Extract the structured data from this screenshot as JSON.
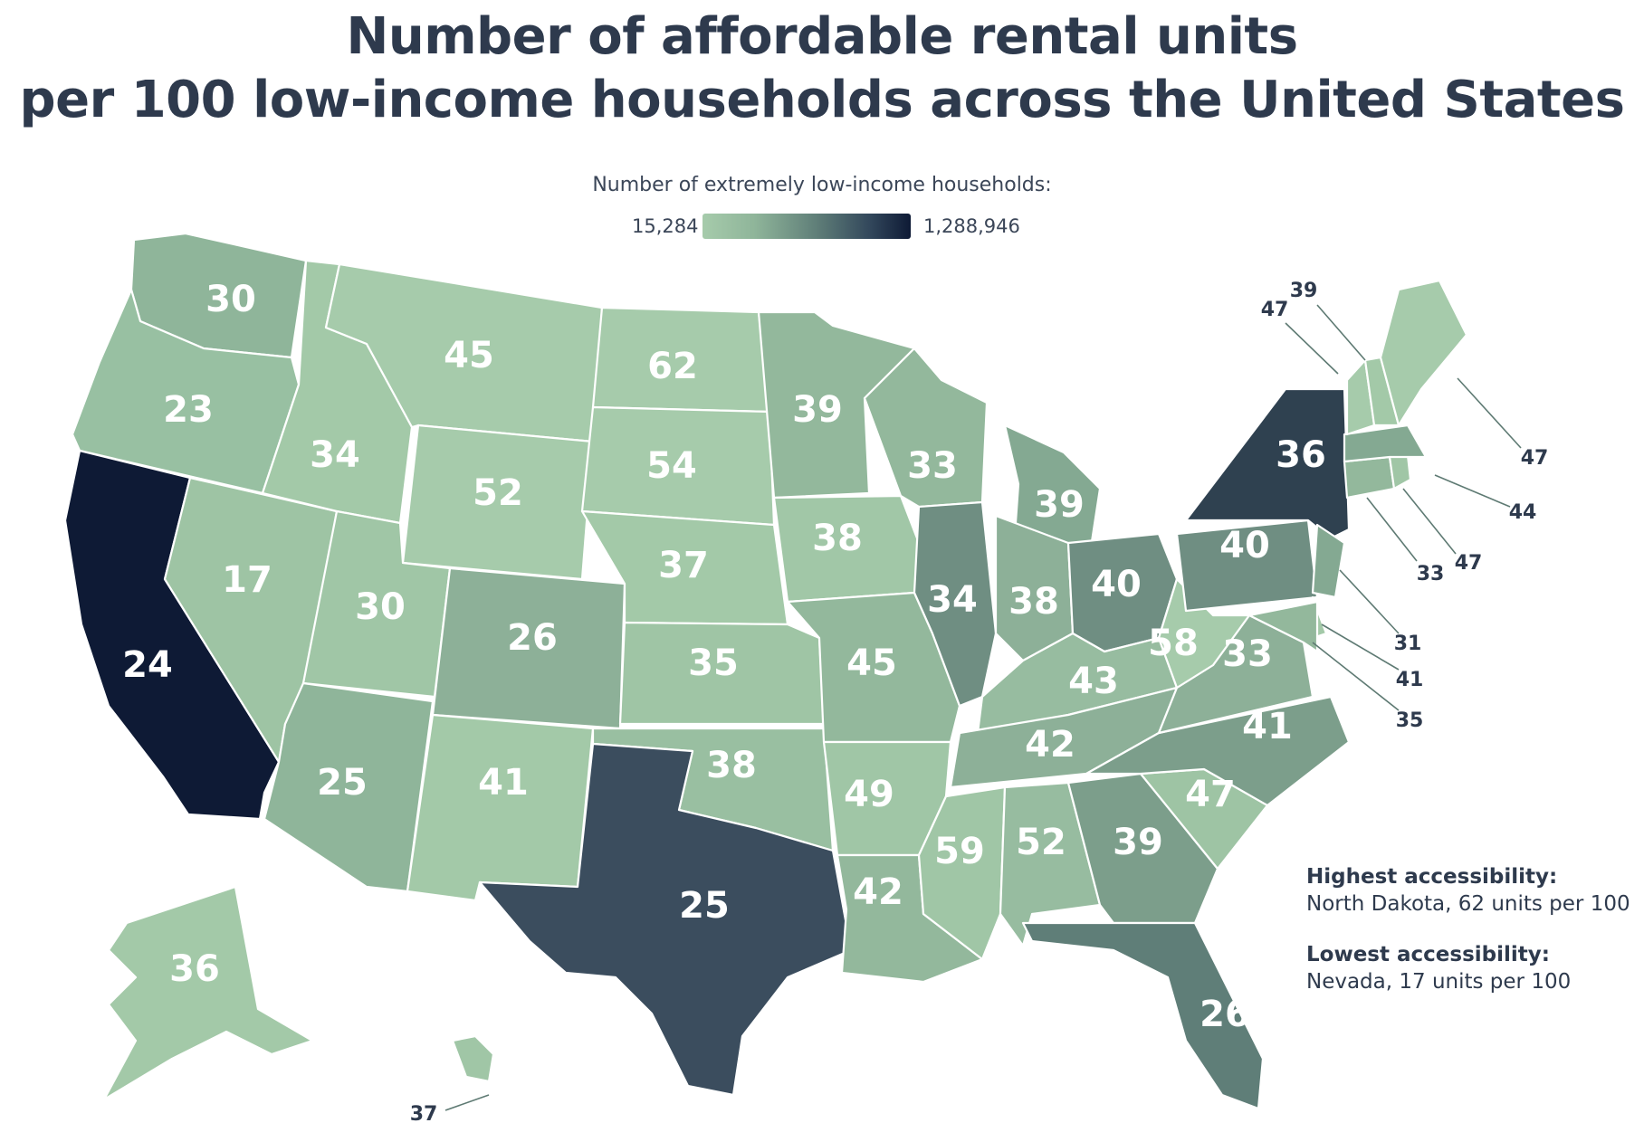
{
  "title_line1": "Number of affordable rental units",
  "title_line2": "per 100 low-income households across the United States",
  "legend": {
    "title": "Number of extremely low-income households:",
    "min": "15,284",
    "max": "1,288,946",
    "color_low": "#a6cbab",
    "color_high": "#0e1a35"
  },
  "notes": {
    "highest_label": "Highest accessibility:",
    "highest_text": "North Dakota, 62 units per 100",
    "lowest_label": "Lowest accessibility:",
    "lowest_text": "Nevada, 17 units per 100"
  },
  "states": [
    {
      "id": "WA",
      "value": "30",
      "color": "#8fb59a"
    },
    {
      "id": "OR",
      "value": "23",
      "color": "#98c0a2"
    },
    {
      "id": "CA",
      "value": "24",
      "color": "#0e1a35"
    },
    {
      "id": "ID",
      "value": "34",
      "color": "#a3c9a8"
    },
    {
      "id": "NV",
      "value": "17",
      "color": "#9ec4a4"
    },
    {
      "id": "MT",
      "value": "45",
      "color": "#a6cbab"
    },
    {
      "id": "WY",
      "value": "52",
      "color": "#a6cbab"
    },
    {
      "id": "UT",
      "value": "30",
      "color": "#a0c6a6"
    },
    {
      "id": "AZ",
      "value": "25",
      "color": "#8fb59a"
    },
    {
      "id": "CO",
      "value": "26",
      "color": "#8db098"
    },
    {
      "id": "NM",
      "value": "41",
      "color": "#a3c9a8"
    },
    {
      "id": "ND",
      "value": "62",
      "color": "#a6cbab"
    },
    {
      "id": "SD",
      "value": "54",
      "color": "#a6cbab"
    },
    {
      "id": "NE",
      "value": "37",
      "color": "#a3c9a8"
    },
    {
      "id": "KS",
      "value": "35",
      "color": "#9fc5a5"
    },
    {
      "id": "OK",
      "value": "38",
      "color": "#99bfa1"
    },
    {
      "id": "TX",
      "value": "25",
      "color": "#3b4d5e"
    },
    {
      "id": "MN",
      "value": "39",
      "color": "#93b89c"
    },
    {
      "id": "IA",
      "value": "38",
      "color": "#a1c7a7"
    },
    {
      "id": "MO",
      "value": "45",
      "color": "#93b89c"
    },
    {
      "id": "AR",
      "value": "49",
      "color": "#a0c6a6"
    },
    {
      "id": "LA",
      "value": "42",
      "color": "#93b89c"
    },
    {
      "id": "WI",
      "value": "33",
      "color": "#93b89c"
    },
    {
      "id": "IL",
      "value": "34",
      "color": "#6f8e82"
    },
    {
      "id": "MI",
      "value": "39",
      "color": "#84a992"
    },
    {
      "id": "IN",
      "value": "38",
      "color": "#8db098"
    },
    {
      "id": "OH",
      "value": "40",
      "color": "#6f8e82"
    },
    {
      "id": "KY",
      "value": "43",
      "color": "#97bca0"
    },
    {
      "id": "TN",
      "value": "42",
      "color": "#8db098"
    },
    {
      "id": "MS",
      "value": "59",
      "color": "#a0c6a6"
    },
    {
      "id": "AL",
      "value": "52",
      "color": "#97bca0"
    },
    {
      "id": "GA",
      "value": "39",
      "color": "#7c9e8b"
    },
    {
      "id": "FL",
      "value": "26",
      "color": "#5f7e78"
    },
    {
      "id": "SC",
      "value": "47",
      "color": "#9ec4a4"
    },
    {
      "id": "NC",
      "value": "41",
      "color": "#7c9e8b"
    },
    {
      "id": "VA",
      "value": "33",
      "color": "#8db098"
    },
    {
      "id": "WV",
      "value": "58",
      "color": "#a6cbab"
    },
    {
      "id": "PA",
      "value": "40",
      "color": "#6f8e82"
    },
    {
      "id": "NY",
      "value": "36",
      "color": "#2f4150"
    },
    {
      "id": "AK",
      "value": "36",
      "color": "#a3c9a8"
    },
    {
      "id": "HI",
      "value": "37",
      "color": "#a0c6a6"
    },
    {
      "id": "ME",
      "value": "47",
      "color": "#a6cbab"
    },
    {
      "id": "VT",
      "value": "47",
      "color": "#a6cbab"
    },
    {
      "id": "NH",
      "value": "39",
      "color": "#a3c9a8"
    },
    {
      "id": "MA",
      "value": "44",
      "color": "#84a992"
    },
    {
      "id": "RI",
      "value": "47",
      "color": "#a0c6a6"
    },
    {
      "id": "CT",
      "value": "33",
      "color": "#93b89c"
    },
    {
      "id": "NJ",
      "value": "31",
      "color": "#84a992"
    },
    {
      "id": "DE",
      "value": "41",
      "color": "#a3c9a8"
    },
    {
      "id": "MD",
      "value": "35",
      "color": "#93b89c"
    }
  ]
}
